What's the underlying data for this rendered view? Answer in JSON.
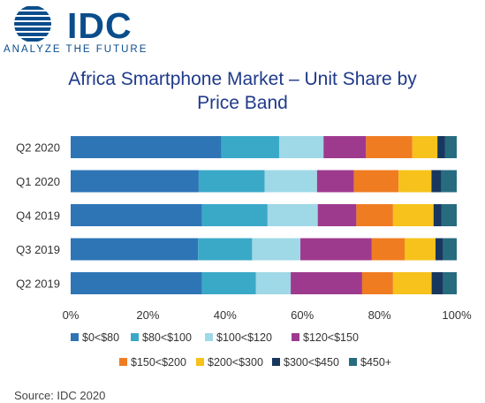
{
  "brand": {
    "name": "IDC",
    "tagline": "ANALYZE THE FUTURE",
    "color": "#0a4d8c"
  },
  "title_line1": "Africa Smartphone Market – Unit Share by",
  "title_line2": "Price Band",
  "source": "Source: IDC 2020",
  "chart_data": {
    "type": "bar",
    "orientation": "horizontal",
    "stacked": true,
    "categories": [
      "Q2 2020",
      "Q1 2020",
      "Q4 2019",
      "Q3 2019",
      "Q2 2019"
    ],
    "xlim": [
      0,
      100
    ],
    "xticks": [
      "0%",
      "20%",
      "40%",
      "60%",
      "80%",
      "100%"
    ],
    "grid": false,
    "legend_position": "bottom",
    "series": [
      {
        "name": "$0<$80",
        "color": "#2e75b6",
        "values": [
          39,
          33,
          34,
          33,
          34
        ]
      },
      {
        "name": "$80<$100",
        "color": "#3aa9c8",
        "values": [
          15,
          17,
          17,
          14,
          14
        ]
      },
      {
        "name": "$100<$120",
        "color": "#9fd8e6",
        "values": [
          11.5,
          13.5,
          13,
          12.5,
          9
        ]
      },
      {
        "name": "$120<$150",
        "color": "#9e3a8e",
        "values": [
          11,
          9.5,
          10,
          18.5,
          18.5
        ]
      },
      {
        "name": "$150<$200",
        "color": "#f07c22",
        "values": [
          12,
          11.5,
          9.5,
          8.5,
          8
        ]
      },
      {
        "name": "$200<$300",
        "color": "#f6c21b",
        "values": [
          6.5,
          8.5,
          10.5,
          8,
          10
        ]
      },
      {
        "name": "$300<$450",
        "color": "#17375e",
        "values": [
          2,
          2.5,
          2,
          2,
          3
        ]
      },
      {
        "name": "$450+",
        "color": "#276b7f",
        "values": [
          3,
          4,
          4,
          3.5,
          3.5
        ]
      }
    ]
  }
}
